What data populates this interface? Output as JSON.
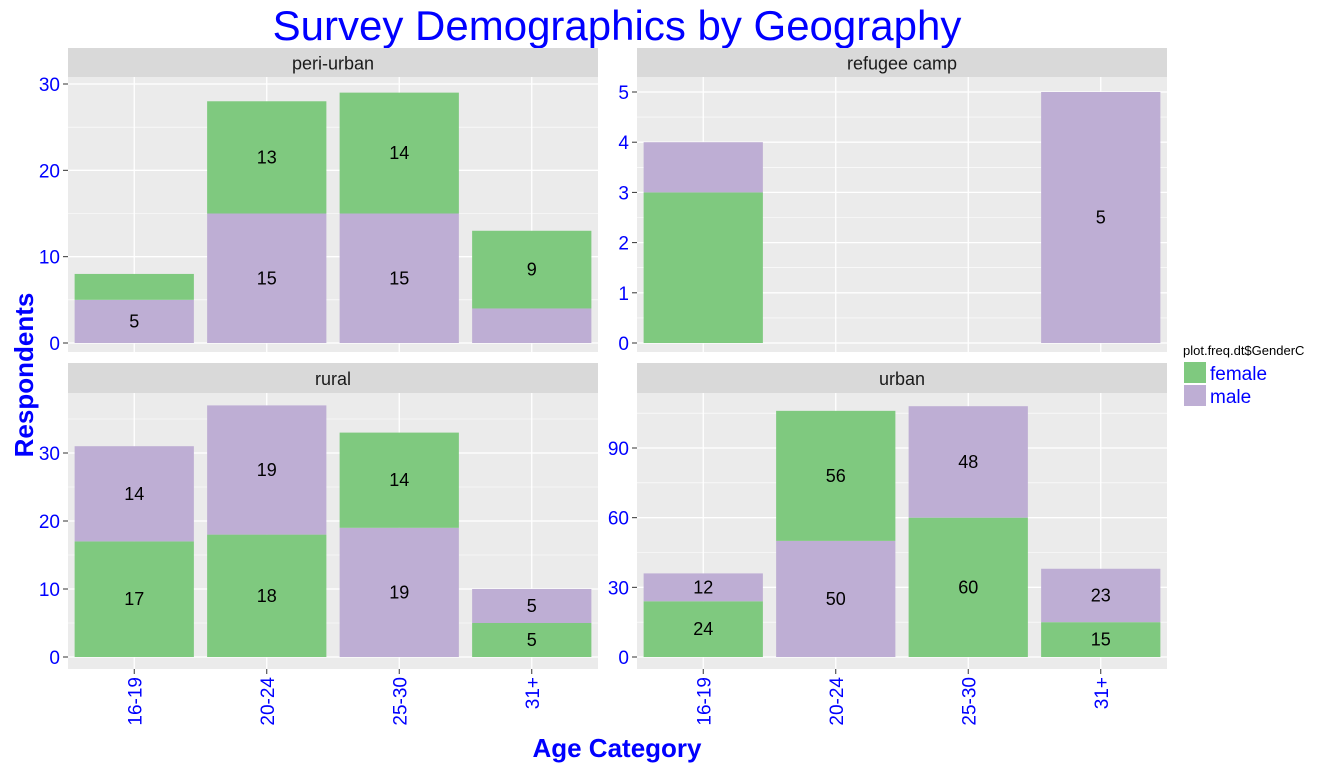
{
  "chart_data": {
    "type": "bar",
    "stacked": true,
    "title": "Survey Demographics by Geography",
    "xlabel": "Age Category",
    "ylabel": "Respondents",
    "categories": [
      "16-19",
      "20-24",
      "25-30",
      "31+"
    ],
    "legend": {
      "title": "plot.freq.dt$GenderC",
      "position": "right",
      "entries": [
        {
          "name": "female",
          "color": "#7fc97f"
        },
        {
          "name": "male",
          "color": "#beaed4"
        }
      ]
    },
    "colors": {
      "title": "#0000ff",
      "axis_text": "#0000ff",
      "panel_bg": "#ebebeb",
      "strip_bg": "#d9d9d9",
      "grid": "#ffffff"
    },
    "grid": true,
    "panels": [
      {
        "name": "peri-urban",
        "yticks": [
          0,
          10,
          20,
          30
        ],
        "ylim": [
          0,
          30.5
        ],
        "bars": [
          {
            "category": "16-19",
            "segments": [
              {
                "series": "male",
                "value": 5,
                "label": "5"
              },
              {
                "series": "female",
                "value": 3,
                "label": ""
              }
            ]
          },
          {
            "category": "20-24",
            "segments": [
              {
                "series": "male",
                "value": 15,
                "label": "15"
              },
              {
                "series": "female",
                "value": 13,
                "label": "13"
              }
            ]
          },
          {
            "category": "25-30",
            "segments": [
              {
                "series": "male",
                "value": 15,
                "label": "15"
              },
              {
                "series": "female",
                "value": 14,
                "label": "14"
              }
            ]
          },
          {
            "category": "31+",
            "segments": [
              {
                "series": "male",
                "value": 4,
                "label": ""
              },
              {
                "series": "female",
                "value": 9,
                "label": "9"
              }
            ]
          }
        ]
      },
      {
        "name": "refugee camp",
        "yticks": [
          0,
          1,
          2,
          3,
          4,
          5
        ],
        "ylim": [
          0,
          5
        ],
        "bars": [
          {
            "category": "16-19",
            "segments": [
              {
                "series": "female",
                "value": 3,
                "label": ""
              },
              {
                "series": "male",
                "value": 1,
                "label": ""
              }
            ]
          },
          {
            "category": "31+",
            "segments": [
              {
                "series": "male",
                "value": 5,
                "label": "5"
              }
            ]
          }
        ]
      },
      {
        "name": "rural",
        "yticks": [
          0,
          10,
          20,
          30
        ],
        "ylim": [
          0,
          37
        ],
        "bars": [
          {
            "category": "16-19",
            "segments": [
              {
                "series": "female",
                "value": 17,
                "label": "17"
              },
              {
                "series": "male",
                "value": 14,
                "label": "14"
              }
            ]
          },
          {
            "category": "20-24",
            "segments": [
              {
                "series": "female",
                "value": 18,
                "label": "18"
              },
              {
                "series": "male",
                "value": 19,
                "label": "19"
              }
            ]
          },
          {
            "category": "25-30",
            "segments": [
              {
                "series": "male",
                "value": 19,
                "label": "19"
              },
              {
                "series": "female",
                "value": 14,
                "label": "14"
              }
            ]
          },
          {
            "category": "31+",
            "segments": [
              {
                "series": "female",
                "value": 5,
                "label": "5"
              },
              {
                "series": "male",
                "value": 5,
                "label": "5"
              }
            ]
          }
        ]
      },
      {
        "name": "urban",
        "yticks": [
          0,
          30,
          60,
          90
        ],
        "ylim": [
          0,
          108
        ],
        "bars": [
          {
            "category": "16-19",
            "segments": [
              {
                "series": "female",
                "value": 24,
                "label": "24"
              },
              {
                "series": "male",
                "value": 12,
                "label": "12"
              }
            ]
          },
          {
            "category": "20-24",
            "segments": [
              {
                "series": "male",
                "value": 50,
                "label": "50"
              },
              {
                "series": "female",
                "value": 56,
                "label": "56"
              }
            ]
          },
          {
            "category": "25-30",
            "segments": [
              {
                "series": "female",
                "value": 60,
                "label": "60"
              },
              {
                "series": "male",
                "value": 48,
                "label": "48"
              }
            ]
          },
          {
            "category": "31+",
            "segments": [
              {
                "series": "female",
                "value": 15,
                "label": "15"
              },
              {
                "series": "male",
                "value": 23,
                "label": "23"
              }
            ]
          }
        ]
      }
    ]
  }
}
